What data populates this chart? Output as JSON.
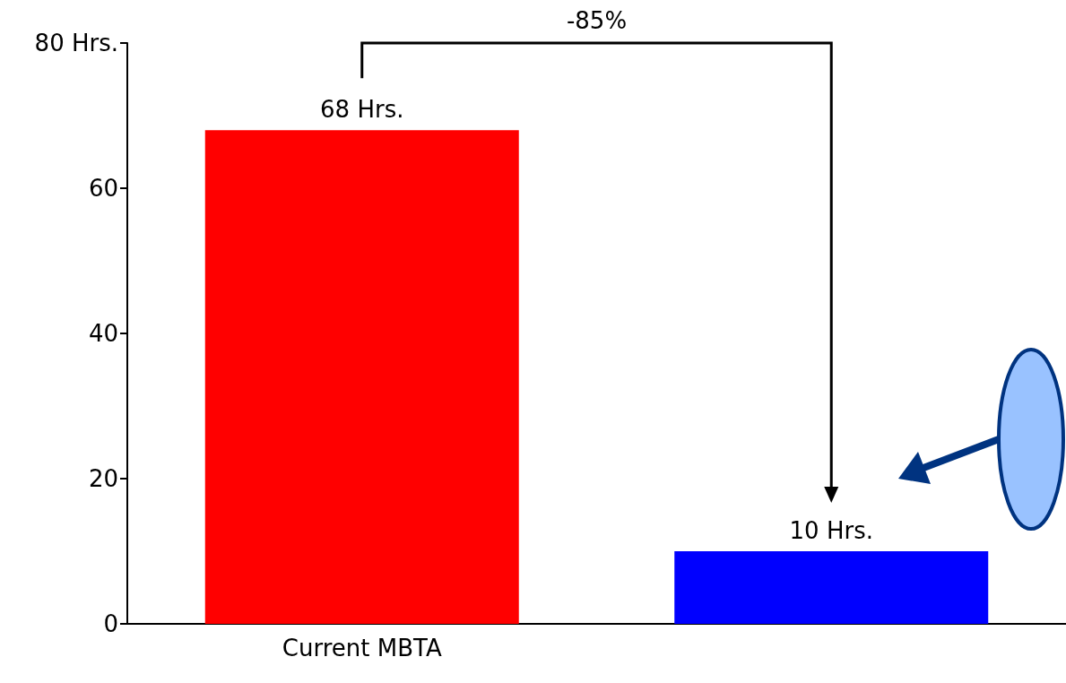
{
  "chart_data": {
    "type": "bar",
    "categories": [
      "Current MBTA",
      null
    ],
    "values": [
      68,
      10
    ],
    "colors": [
      "#ff0000",
      "#0000ff"
    ],
    "value_labels": [
      "68 Hrs.",
      "10 Hrs."
    ],
    "ylim": [
      0,
      80
    ],
    "yticks": [
      0,
      20,
      40,
      60,
      {
        "value": 80,
        "label": "80 Hrs."
      }
    ],
    "grid": false,
    "annotations": [
      "-85%"
    ]
  }
}
